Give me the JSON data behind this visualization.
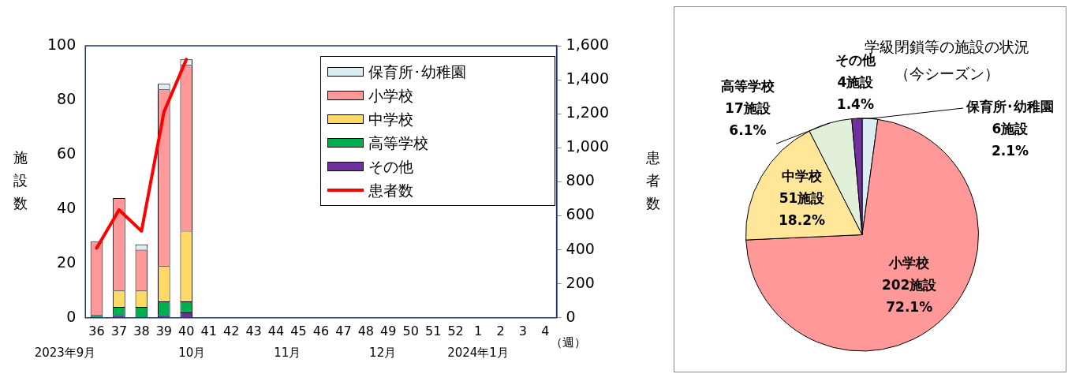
{
  "chart_data": [
    {
      "type": "bar",
      "stacked": true,
      "ylabel": "施設数",
      "y2label": "患者数",
      "xlabel": "（週）",
      "categories": [
        "36",
        "37",
        "38",
        "39",
        "40",
        "41",
        "42",
        "43",
        "44",
        "45",
        "46",
        "47",
        "48",
        "49",
        "50",
        "51",
        "52",
        "1",
        "2",
        "3",
        "4"
      ],
      "series": [
        {
          "name": "患者数",
          "type": "line",
          "axis": "y2",
          "color": "#ff0000",
          "values": [
            410,
            635,
            510,
            1210,
            1520,
            null,
            null,
            null,
            null,
            null,
            null,
            null,
            null,
            null,
            null,
            null,
            null,
            null,
            null,
            null,
            null
          ]
        },
        {
          "name": "その他",
          "color": "#7030a0",
          "values": [
            0,
            1,
            0,
            1,
            2,
            null,
            null,
            null,
            null,
            null,
            null,
            null,
            null,
            null,
            null,
            null,
            null,
            null,
            null,
            null,
            null
          ]
        },
        {
          "name": "高等学校",
          "color": "#00b050",
          "values": [
            1,
            3,
            4,
            5,
            4,
            null,
            null,
            null,
            null,
            null,
            null,
            null,
            null,
            null,
            null,
            null,
            null,
            null,
            null,
            null,
            null
          ]
        },
        {
          "name": "中学校",
          "color": "#ffd966",
          "values": [
            0,
            6,
            6,
            13,
            26,
            null,
            null,
            null,
            null,
            null,
            null,
            null,
            null,
            null,
            null,
            null,
            null,
            null,
            null,
            null,
            null
          ]
        },
        {
          "name": "小学校",
          "color": "#ff9999",
          "values": [
            27,
            34,
            15,
            65,
            61,
            null,
            null,
            null,
            null,
            null,
            null,
            null,
            null,
            null,
            null,
            null,
            null,
            null,
            null,
            null,
            null
          ]
        },
        {
          "name": "保育所･幼稚園",
          "color": "#daeef3",
          "values": [
            0,
            0,
            2,
            2,
            2,
            null,
            null,
            null,
            null,
            null,
            null,
            null,
            null,
            null,
            null,
            null,
            null,
            null,
            null,
            null,
            null
          ]
        }
      ],
      "ylim": [
        0,
        100
      ],
      "yticks": [
        0,
        20,
        40,
        60,
        80,
        100
      ],
      "y2lim": [
        0,
        1600
      ],
      "y2ticks": [
        0,
        200,
        400,
        600,
        800,
        {
          "value": 1000,
          "label": "1,000"
        },
        {
          "value": 1200,
          "label": "1,200"
        },
        {
          "value": 1400,
          "label": "1,400"
        },
        {
          "value": 1600,
          "label": "1,600"
        }
      ],
      "legend": "top right",
      "grid": false,
      "marker": "none",
      "line_style": "solid",
      "annotations": [
        "2023年9月",
        "10月",
        "11月",
        "12月",
        "2024年1月"
      ]
    },
    {
      "type": "pie",
      "title": "学級閉鎖等の施設の状況",
      "subtitle": "（今シーズン）",
      "categories": [
        "保育所･幼稚園",
        "小学校",
        "中学校",
        "高等学校",
        "その他"
      ],
      "values": [
        6,
        202,
        51,
        17,
        4
      ],
      "colors": [
        "#daeef3",
        "#ff9999",
        "#ffe699",
        "#e2f0d9",
        "#7030a0"
      ],
      "value_labels": [
        "6施設\n2.1%",
        "202施設\n72.1%",
        "51施設\n18.2%",
        "17施設\n6.1%",
        "4施設\n1.4%"
      ]
    }
  ]
}
